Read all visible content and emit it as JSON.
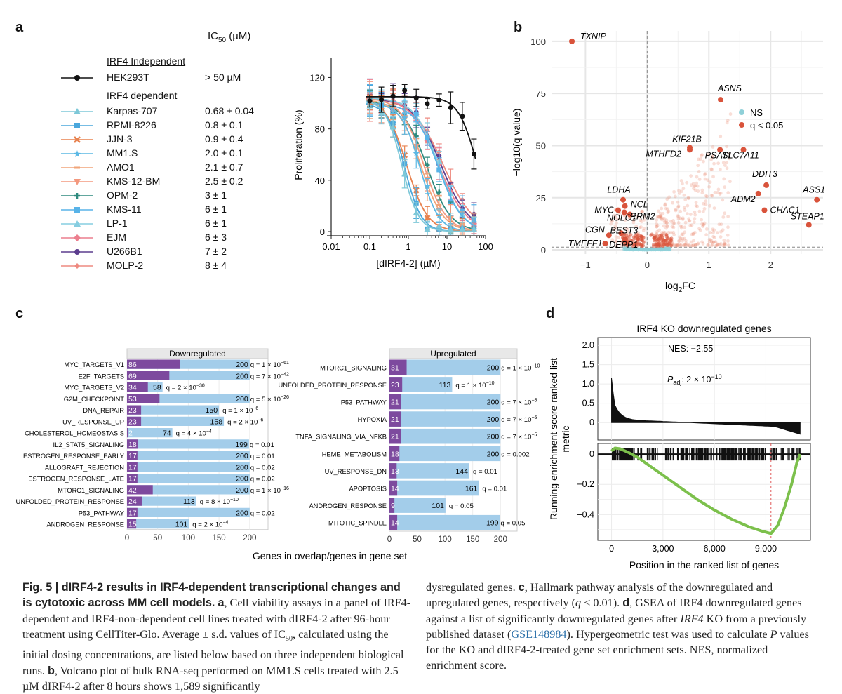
{
  "panels": {
    "a": "a",
    "b": "b",
    "c": "c",
    "d": "d"
  },
  "panel_a": {
    "ic50_header": "IC",
    "ic50_header_sub": "50",
    "ic50_header_unit": " (µM)",
    "independent_header": "IRF4 Independent",
    "dependent_header": "IRF4 dependent",
    "lines": [
      {
        "name": "HEK293T",
        "ic50": "> 50 µM",
        "color": "#111111",
        "marker": "circle"
      },
      {
        "name": "Karpas-707",
        "ic50": "0.68 ± 0.04",
        "color": "#7ec8d8",
        "marker": "triangle"
      },
      {
        "name": "RPMI-8226",
        "ic50": "0.8 ± 0.1",
        "color": "#4aa7dc",
        "marker": "square"
      },
      {
        "name": "JJN-3",
        "ic50": "0.9 ± 0.4",
        "color": "#e8824f",
        "marker": "x"
      },
      {
        "name": "MM1.S",
        "ic50": "2.0 ± 0.1",
        "color": "#5bb8e4",
        "marker": "star"
      },
      {
        "name": "AMO1",
        "ic50": "2.1 ± 0.7",
        "color": "#f0a478",
        "marker": "dash"
      },
      {
        "name": "KMS-12-BM",
        "ic50": "2.5 ± 0.2",
        "color": "#f3987e",
        "marker": "down-triangle"
      },
      {
        "name": "OPM-2",
        "ic50": "3 ± 1",
        "color": "#2e8a7e",
        "marker": "plus"
      },
      {
        "name": "KMS-11",
        "ic50": "6 ± 1",
        "color": "#58b3e8",
        "marker": "square"
      },
      {
        "name": "LP-1",
        "ic50": "6 ± 1",
        "color": "#86cde0",
        "marker": "triangle"
      },
      {
        "name": "EJM",
        "ic50": "6 ± 3",
        "color": "#ec7f8e",
        "marker": "diamond"
      },
      {
        "name": "U266B1",
        "ic50": "7 ± 2",
        "color": "#5c3d8e",
        "marker": "circle"
      },
      {
        "name": "MOLP-2",
        "ic50": "8 ± 4",
        "color": "#ee8a80",
        "marker": "diamond-small"
      }
    ]
  },
  "chart_data": [
    {
      "type": "line",
      "panel": "a",
      "xlabel": "[dIRF4-2] (µM)",
      "ylabel": "Proliferation (%)",
      "xscale": "log",
      "xlim": [
        0.01,
        100
      ],
      "ylim": [
        0,
        135
      ],
      "xticks": [
        "0.01",
        "0.1",
        "1",
        "10",
        "100"
      ],
      "yticks": [
        "0",
        "40",
        "80",
        "120"
      ],
      "x": [
        0.1,
        0.2,
        0.4,
        0.8,
        1.6,
        3.1,
        6.25,
        12.5,
        25,
        50
      ],
      "series": [
        {
          "name": "HEK293T",
          "ic50": 60,
          "top": 105,
          "hill": 1.8
        },
        {
          "name": "Karpas-707",
          "ic50": 0.68,
          "top": 103,
          "hill": 2.0
        },
        {
          "name": "RPMI-8226",
          "ic50": 0.8,
          "top": 100,
          "hill": 2.0
        },
        {
          "name": "JJN-3",
          "ic50": 0.9,
          "top": 104,
          "hill": 1.6
        },
        {
          "name": "MM1.S",
          "ic50": 2.0,
          "top": 100,
          "hill": 1.8
        },
        {
          "name": "AMO1",
          "ic50": 2.1,
          "top": 103,
          "hill": 1.5
        },
        {
          "name": "KMS-12-BM",
          "ic50": 2.5,
          "top": 104,
          "hill": 1.5
        },
        {
          "name": "OPM-2",
          "ic50": 3,
          "top": 102,
          "hill": 1.4
        },
        {
          "name": "KMS-11",
          "ic50": 6,
          "top": 100,
          "hill": 1.4
        },
        {
          "name": "LP-1",
          "ic50": 6,
          "top": 104,
          "hill": 1.4
        },
        {
          "name": "EJM",
          "ic50": 6,
          "top": 105,
          "hill": 1.2
        },
        {
          "name": "U266B1",
          "ic50": 7,
          "top": 104,
          "hill": 1.2
        },
        {
          "name": "MOLP-2",
          "ic50": 8,
          "top": 104,
          "hill": 1.1
        }
      ]
    },
    {
      "type": "scatter",
      "panel": "b",
      "xlabel": "log",
      "xlabel_sub": "2",
      "xlabel_tail": "FC",
      "ylabel": "−log10(q value)",
      "xlim": [
        -1.55,
        2.85
      ],
      "ylim": [
        -2,
        105
      ],
      "xticks": [
        "−1",
        "0",
        "1",
        "2"
      ],
      "yticks": [
        "0",
        "25",
        "50",
        "75",
        "100"
      ],
      "legend": [
        "NS",
        "q < 0.05"
      ],
      "legend_colors": {
        "ns": "#8fd0d8",
        "sig": "#d9533b"
      },
      "labeled_points": [
        {
          "gene": "TXNIP",
          "x": -1.22,
          "y": 100
        },
        {
          "gene": "ASNS",
          "x": 1.19,
          "y": 72
        },
        {
          "gene": "KIF21B",
          "x": 0.69,
          "y": 49
        },
        {
          "gene": "MTHFD2",
          "x": 0.69,
          "y": 48
        },
        {
          "gene": "PSAT1",
          "x": 1.18,
          "y": 48
        },
        {
          "gene": "SLC7A11",
          "x": 1.56,
          "y": 48
        },
        {
          "gene": "DDIT3",
          "x": 1.93,
          "y": 31
        },
        {
          "gene": "ADM2",
          "x": 1.8,
          "y": 27
        },
        {
          "gene": "ASS1",
          "x": 2.75,
          "y": 24
        },
        {
          "gene": "CHAC1",
          "x": 1.9,
          "y": 19
        },
        {
          "gene": "STEAP1",
          "x": 2.62,
          "y": 12
        },
        {
          "gene": "LDHA",
          "x": -0.39,
          "y": 24
        },
        {
          "gene": "MYC",
          "x": -0.47,
          "y": 19
        },
        {
          "gene": "NCL",
          "x": -0.36,
          "y": 21
        },
        {
          "gene": "NOLC1",
          "x": -0.37,
          "y": 18
        },
        {
          "gene": "RRM2",
          "x": -0.28,
          "y": 17
        },
        {
          "gene": "CGN",
          "x": -0.62,
          "y": 7
        },
        {
          "gene": "BEST3",
          "x": -0.42,
          "y": 8
        },
        {
          "gene": "DEPP1",
          "x": -0.36,
          "y": 5
        },
        {
          "gene": "TMEFF1",
          "x": -0.68,
          "y": 3
        }
      ]
    },
    {
      "type": "bar",
      "panel": "c-left",
      "title": "Downregulated",
      "xlabel": "Genes in overlap/genes in gene set",
      "xlim": [
        0,
        230
      ],
      "xticks": [
        "0",
        "50",
        "100",
        "150",
        "200"
      ],
      "categories": [
        "MYC_TARGETS_V1",
        "E2F_TARGETS",
        "MYC_TARGETS_V2",
        "G2M_CHECKPOINT",
        "DNA_REPAIR",
        "UV_RESPONSE_UP",
        "CHOLESTEROL_HOMEOSTASIS",
        "IL2_STAT5_SIGNALING",
        "ESTROGEN_RESPONSE_EARLY",
        "ALLOGRAFT_REJECTION",
        "ESTROGEN_RESPONSE_LATE",
        "MTORC1_SIGNALING",
        "UNFOLDED_PROTEIN_RESPONSE",
        "P53_PATHWAY",
        "ANDROGEN_RESPONSE"
      ],
      "series": [
        {
          "name": "overlap",
          "values": [
            86,
            69,
            34,
            53,
            23,
            23,
            2,
            18,
            17,
            17,
            17,
            42,
            24,
            17,
            15
          ]
        },
        {
          "name": "gene set",
          "values": [
            200,
            200,
            58,
            200,
            150,
            158,
            74,
            199,
            200,
            200,
            200,
            200,
            113,
            200,
            101
          ]
        }
      ],
      "q_labels": [
        {
          "pre": "q = 1 × 10",
          "sup": "−61"
        },
        {
          "pre": "q = 7 × 10",
          "sup": "−42"
        },
        {
          "pre": "q = 2 × 10",
          "sup": "−30"
        },
        {
          "pre": "q = 5 × 10",
          "sup": "−26"
        },
        {
          "pre": "q = 1 × 10",
          "sup": "−6"
        },
        {
          "pre": "q = 2 × 10",
          "sup": "−6"
        },
        {
          "pre": "q = 4 × 10",
          "sup": "−4"
        },
        {
          "pre": "q = 0.01",
          "sup": ""
        },
        {
          "pre": "q = 0.01",
          "sup": ""
        },
        {
          "pre": "q = 0.02",
          "sup": ""
        },
        {
          "pre": "q = 0.02",
          "sup": ""
        },
        {
          "pre": "q = 1 × 10",
          "sup": "−16"
        },
        {
          "pre": "q = 8 × 10",
          "sup": "−10"
        },
        {
          "pre": "q = 0.02",
          "sup": ""
        },
        {
          "pre": "q = 2 × 10",
          "sup": "−4"
        }
      ]
    },
    {
      "type": "bar",
      "panel": "c-right",
      "title": "Upregulated",
      "xlim": [
        0,
        230
      ],
      "xticks": [
        "0",
        "50",
        "100",
        "150",
        "200"
      ],
      "categories": [
        "MTORC1_SIGNALING",
        "UNFOLDED_PROTEIN_RESPONSE",
        "P53_PATHWAY",
        "HYPOXIA",
        "TNFA_SIGNALING_VIA_NFKB",
        "HEME_METABOLISM",
        "UV_RESPONSE_DN",
        "APOPTOSIS",
        "ANDROGEN_RESPONSE",
        "MITOTIC_SPINDLE"
      ],
      "series": [
        {
          "name": "overlap",
          "values": [
            31,
            23,
            21,
            21,
            21,
            18,
            13,
            14,
            9,
            14
          ]
        },
        {
          "name": "gene set",
          "values": [
            200,
            113,
            200,
            200,
            200,
            200,
            144,
            161,
            101,
            199
          ]
        }
      ],
      "q_labels": [
        {
          "pre": "q = 1 × 10",
          "sup": "−10"
        },
        {
          "pre": "q = 1 × 10",
          "sup": "−10"
        },
        {
          "pre": "q = 7 × 10",
          "sup": "−5"
        },
        {
          "pre": "q = 7 × 10",
          "sup": "−5"
        },
        {
          "pre": "q = 7 × 10",
          "sup": "−5"
        },
        {
          "pre": "q = 0.002",
          "sup": ""
        },
        {
          "pre": "q = 0.01",
          "sup": ""
        },
        {
          "pre": "q = 0.01",
          "sup": ""
        },
        {
          "pre": "q = 0.05",
          "sup": ""
        },
        {
          "pre": "q = 0.05",
          "sup": ""
        }
      ]
    },
    {
      "type": "line",
      "panel": "d",
      "title": "IRF4 KO downregulated genes",
      "xlabel": "Position in the ranked list of genes",
      "ylabel": "Running enrichment score ranked list metric",
      "xlim": [
        -800,
        11600
      ],
      "xticks": [
        "0",
        "3,000",
        "6,000",
        "9,000"
      ],
      "top_yticks": [
        "2.0",
        "1.5",
        "1.0",
        "0.5",
        "0"
      ],
      "top_ylim": [
        -0.45,
        2.2
      ],
      "bottom_yticks": [
        "0",
        "−0.2",
        "−0.4"
      ],
      "bottom_ylim": [
        -0.57,
        0.07
      ],
      "nes": "NES: −2.55",
      "padj_pre": "P",
      "padj_sub": "adj",
      "padj_tail": ": 2 × 10",
      "padj_sup": "−10",
      "running_es": [
        [
          0,
          0.02
        ],
        [
          200,
          0.04
        ],
        [
          500,
          0.035
        ],
        [
          1000,
          0.01
        ],
        [
          1500,
          -0.02
        ],
        [
          2000,
          -0.06
        ],
        [
          3000,
          -0.14
        ],
        [
          4000,
          -0.22
        ],
        [
          5000,
          -0.3
        ],
        [
          6000,
          -0.37
        ],
        [
          7000,
          -0.43
        ],
        [
          8000,
          -0.48
        ],
        [
          8800,
          -0.51
        ],
        [
          9300,
          -0.525
        ],
        [
          9700,
          -0.47
        ],
        [
          10100,
          -0.35
        ],
        [
          10500,
          -0.2
        ],
        [
          10800,
          -0.06
        ],
        [
          11000,
          0
        ]
      ],
      "min_position": 9300
    }
  ],
  "caption": {
    "left_bold": "Fig. 5 | dIRF4-2 results in IRF4-dependent transcriptional changes and is cytotoxic across MM cell models.",
    "left_a": "a",
    "left_text1": ", Cell viability assays in a panel of IRF4-dependent and IRF4-non-dependent cell lines treated with dIRF4-2 after 96-hour treatment using CellTiter-Glo. Average ± s.d. values of IC",
    "left_sub": "50",
    "left_text2": ", calculated using the initial dosing concentrations, are listed below based on three independent biological runs.",
    "left_b": "b",
    "left_text3": ", Volcano plot of bulk RNA-seq performed on MM1.S cells treated with 2.5 µM dIRF4-2 after 8 hours shows 1,589 significantly",
    "right_text1": "dysregulated genes.",
    "right_c": "c",
    "right_text2": ", Hallmark pathway analysis of the downregulated and upregulated genes, respectively (",
    "right_q": "q",
    "right_text3": " < 0.01).",
    "right_d": "d",
    "right_text4": ", GSEA of IRF4 downregulated genes against a list of significantly downregulated genes after ",
    "right_irf4": "IRF4",
    "right_text5": " KO from a previously published dataset (",
    "right_geo": "GSE148984",
    "right_text6": "). Hypergeometric test was used to calculate ",
    "right_p": "P",
    "right_text7": " values for the KO and dIRF4-2-treated gene set enrichment sets. NES, normalized enrichment score."
  }
}
